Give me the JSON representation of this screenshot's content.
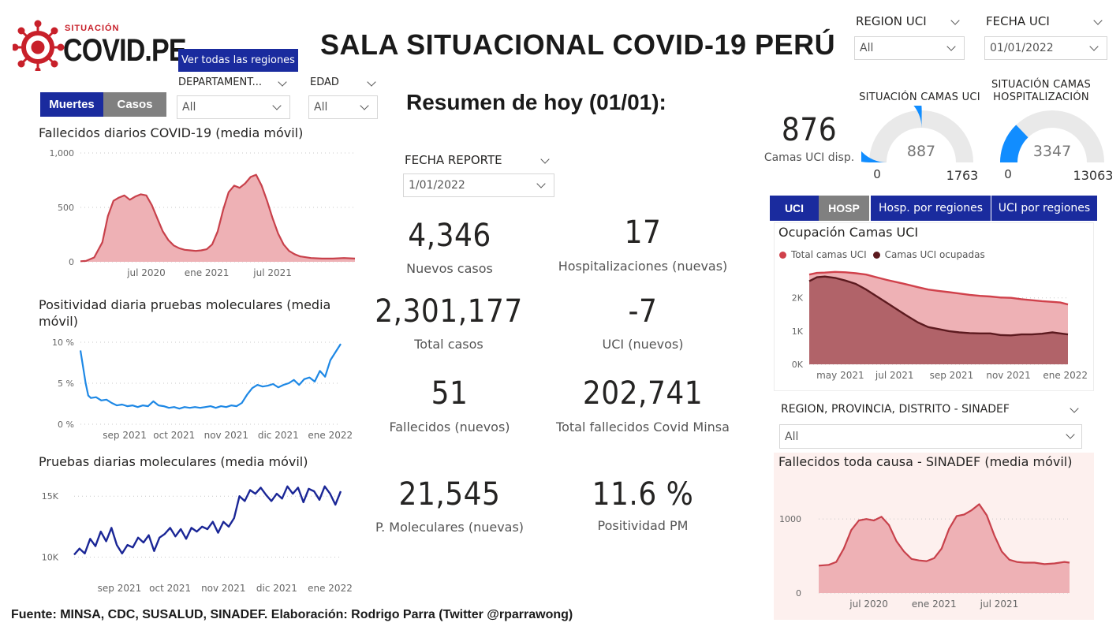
{
  "header": {
    "logo_top": "SITUACIÓN",
    "logo_main": "COVID.PE",
    "title": "SALA SITUACIONAL COVID-19 PERÚ",
    "all_regions_button": "Ver todas las regiones"
  },
  "filters": {
    "region_uci": {
      "label": "REGION UCI",
      "value": "All"
    },
    "fecha_uci": {
      "label": "FECHA UCI",
      "value": "01/01/2022"
    },
    "departamento": {
      "label": "DEPARTAMENT...",
      "value": "All"
    },
    "edad": {
      "label": "EDAD",
      "value": "All"
    },
    "fecha_reporte": {
      "label": "FECHA REPORTE",
      "value": "1/01/2022"
    },
    "sinadef_region": {
      "label": "REGION, PROVINCIA, DISTRITO - SINADEF",
      "value": "All"
    }
  },
  "toggles": {
    "muertes": "Muertes",
    "casos": "Casos",
    "uci": "UCI",
    "hosp": "HOSP",
    "hosp_regiones": "Hosp. por regiones",
    "uci_regiones": "UCI por regiones"
  },
  "summary": {
    "heading": "Resumen de hoy (01/01):",
    "kpis": [
      {
        "value": "4,346",
        "label": "Nuevos casos"
      },
      {
        "value": "17",
        "label": "Hospitalizaciones (nuevas)"
      },
      {
        "value": "2,301,177",
        "label": "Total casos"
      },
      {
        "value": "-7",
        "label": "UCI (nuevos)"
      },
      {
        "value": "51",
        "label": "Fallecidos  (nuevos)"
      },
      {
        "value": "202,741",
        "label": "Total fallecidos Covid Minsa"
      },
      {
        "value": "21,545",
        "label": "P. Moleculares (nuevas)"
      },
      {
        "value": "11.6 %",
        "label": "Positividad PM"
      }
    ]
  },
  "beds": {
    "uci_available_value": "876",
    "uci_available_label": "Camas UCI disp.",
    "uci_gauge": {
      "title": "SITUACIÓN CAMAS UCI",
      "value": 887,
      "min": 0,
      "max": 1763,
      "value_label": "887",
      "min_label": "0",
      "max_label": "1763"
    },
    "hosp_gauge": {
      "title_line1": "SITUACIÓN CAMAS",
      "title_line2": "HOSPITALIZACIÓN",
      "value": 3347,
      "min": 0,
      "max": 13063,
      "value_label": "3347",
      "min_label": "0",
      "max_label": "13063"
    }
  },
  "colors": {
    "navy": "#1a2b9e",
    "gray_toggle": "#808080",
    "death_line": "#c8414b",
    "death_fill": "#eeb1b5",
    "positivity_line": "#1e88e5",
    "tests_line": "#1a2696",
    "gauge_fill": "#118dff",
    "gauge_bg": "#e9e9e9",
    "uci_total": "#d0414b",
    "uci_occupied": "#5c1a1f",
    "sinadef_bg": "#fdf0ee"
  },
  "chart_data": [
    {
      "id": "deaths",
      "type": "area",
      "title": "Fallecidos diarios COVID-19 (media móvil)",
      "yticks": [
        "1,000",
        "500",
        "0"
      ],
      "ylim": [
        0,
        1000
      ],
      "xticks": [
        "jul 2020",
        "ene 2021",
        "jul 2021"
      ],
      "xtick_positions": [
        0.24,
        0.46,
        0.7
      ],
      "x": [
        0,
        0.02,
        0.05,
        0.08,
        0.1,
        0.12,
        0.14,
        0.16,
        0.18,
        0.2,
        0.22,
        0.24,
        0.26,
        0.28,
        0.3,
        0.32,
        0.34,
        0.36,
        0.38,
        0.4,
        0.42,
        0.44,
        0.46,
        0.48,
        0.5,
        0.52,
        0.54,
        0.56,
        0.58,
        0.6,
        0.62,
        0.64,
        0.66,
        0.68,
        0.7,
        0.72,
        0.74,
        0.76,
        0.78,
        0.8,
        0.84,
        0.88,
        0.92,
        0.96,
        1.0
      ],
      "values": [
        5,
        8,
        40,
        180,
        420,
        560,
        590,
        610,
        570,
        600,
        620,
        610,
        520,
        400,
        280,
        200,
        150,
        125,
        110,
        105,
        100,
        105,
        115,
        160,
        280,
        480,
        640,
        700,
        680,
        720,
        780,
        800,
        700,
        560,
        400,
        260,
        160,
        100,
        70,
        50,
        35,
        30,
        30,
        35,
        30
      ]
    },
    {
      "id": "positivity",
      "type": "line",
      "title": "Positividad diaria pruebas moleculares (media móvil)",
      "yticks": [
        "10 %",
        "5 %",
        "0 %"
      ],
      "ylim": [
        0,
        10
      ],
      "xticks": [
        "sep 2021",
        "oct 2021",
        "nov 2021",
        "dic 2021",
        "ene 2022"
      ],
      "xtick_positions": [
        0.17,
        0.36,
        0.56,
        0.76,
        0.96
      ],
      "x": [
        0,
        0.01,
        0.02,
        0.03,
        0.04,
        0.06,
        0.08,
        0.1,
        0.12,
        0.14,
        0.16,
        0.18,
        0.2,
        0.22,
        0.24,
        0.26,
        0.28,
        0.3,
        0.32,
        0.34,
        0.36,
        0.38,
        0.4,
        0.42,
        0.44,
        0.46,
        0.48,
        0.5,
        0.52,
        0.54,
        0.56,
        0.58,
        0.6,
        0.62,
        0.64,
        0.66,
        0.68,
        0.7,
        0.72,
        0.74,
        0.76,
        0.78,
        0.8,
        0.82,
        0.84,
        0.86,
        0.88,
        0.9,
        0.92,
        0.94,
        0.96,
        0.98,
        1.0
      ],
      "values": [
        9,
        7,
        5,
        3.5,
        3.2,
        3.3,
        2.9,
        3.0,
        2.6,
        2.3,
        2.4,
        2.2,
        2.3,
        2.1,
        2.3,
        2.2,
        2.8,
        2.3,
        2.2,
        2.0,
        2.1,
        1.9,
        2.1,
        2.0,
        2.1,
        2.0,
        2.1,
        2.2,
        2.0,
        2.2,
        2.1,
        2.3,
        2.2,
        2.6,
        3.6,
        4.4,
        4.8,
        4.6,
        4.7,
        4.9,
        4.5,
        4.8,
        5.0,
        5.4,
        4.8,
        5.5,
        5.7,
        5.2,
        6.5,
        5.8,
        7.8,
        8.8,
        9.8
      ]
    },
    {
      "id": "tests",
      "type": "line",
      "title": "Pruebas diarias moleculares (media móvil)",
      "yticks": [
        "15K",
        "10K"
      ],
      "ytick_values": [
        15000,
        10000
      ],
      "ylim": [
        9000,
        16500
      ],
      "xticks": [
        "sep 2021",
        "oct 2021",
        "nov 2021",
        "dic 2021",
        "ene 2022"
      ],
      "xtick_positions": [
        0.17,
        0.36,
        0.56,
        0.76,
        0.96
      ],
      "x": [
        0,
        0.02,
        0.04,
        0.06,
        0.08,
        0.1,
        0.12,
        0.14,
        0.16,
        0.18,
        0.2,
        0.22,
        0.24,
        0.26,
        0.28,
        0.3,
        0.32,
        0.34,
        0.36,
        0.38,
        0.4,
        0.42,
        0.44,
        0.46,
        0.48,
        0.5,
        0.52,
        0.54,
        0.56,
        0.58,
        0.6,
        0.62,
        0.64,
        0.66,
        0.68,
        0.7,
        0.72,
        0.74,
        0.76,
        0.78,
        0.8,
        0.82,
        0.84,
        0.86,
        0.88,
        0.9,
        0.92,
        0.94,
        0.96,
        0.98,
        1.0
      ],
      "values": [
        10200,
        10700,
        10300,
        11500,
        10900,
        12100,
        11300,
        12400,
        11000,
        10300,
        11000,
        10800,
        11600,
        11200,
        11800,
        10500,
        11600,
        11900,
        12400,
        11700,
        12300,
        11500,
        12400,
        12100,
        12500,
        12300,
        12900,
        12000,
        12900,
        12500,
        13200,
        15000,
        14600,
        15500,
        15200,
        15700,
        15100,
        14600,
        15200,
        14800,
        15800,
        15200,
        15700,
        14500,
        15600,
        15400,
        14700,
        15800,
        15200,
        14300,
        15400
      ]
    },
    {
      "id": "uci_occupancy",
      "type": "area",
      "title": "Ocupación Camas UCI",
      "legend": [
        "Total camas UCI",
        "Camas UCI ocupadas"
      ],
      "yticks": [
        "2K",
        "1K",
        "0K"
      ],
      "ytick_values": [
        2000,
        1000,
        0
      ],
      "ylim": [
        0,
        2800
      ],
      "xticks": [
        "may 2021",
        "jul 2021",
        "sep 2021",
        "nov 2021",
        "ene 2022"
      ],
      "xtick_positions": [
        0.12,
        0.33,
        0.55,
        0.77,
        0.99
      ],
      "x": [
        0,
        0.03,
        0.06,
        0.1,
        0.14,
        0.18,
        0.22,
        0.26,
        0.3,
        0.34,
        0.38,
        0.42,
        0.46,
        0.5,
        0.54,
        0.58,
        0.62,
        0.66,
        0.7,
        0.74,
        0.78,
        0.82,
        0.86,
        0.9,
        0.94,
        0.97,
        1.0
      ],
      "series": [
        {
          "name": "Total camas UCI",
          "values": [
            2700,
            2750,
            2760,
            2780,
            2770,
            2740,
            2700,
            2620,
            2540,
            2470,
            2400,
            2320,
            2250,
            2210,
            2170,
            2130,
            2090,
            2060,
            2040,
            2010,
            2000,
            1960,
            1930,
            1900,
            1880,
            1860,
            1800
          ]
        },
        {
          "name": "Camas UCI ocupadas",
          "values": [
            2500,
            2620,
            2640,
            2600,
            2520,
            2420,
            2250,
            2050,
            1850,
            1650,
            1450,
            1260,
            1120,
            1060,
            1000,
            960,
            940,
            930,
            930,
            880,
            870,
            900,
            900,
            920,
            960,
            930,
            900
          ]
        }
      ]
    },
    {
      "id": "sinadef",
      "type": "area",
      "title": "Fallecidos toda causa - SINADEF (media móvil)",
      "yticks": [
        "1000",
        "0"
      ],
      "ytick_values": [
        1000,
        0
      ],
      "ylim": [
        0,
        1300
      ],
      "xticks": [
        "jul 2020",
        "ene 2021",
        "jul 2021"
      ],
      "xtick_positions": [
        0.2,
        0.46,
        0.72
      ],
      "x": [
        0,
        0.04,
        0.07,
        0.1,
        0.13,
        0.16,
        0.19,
        0.22,
        0.25,
        0.28,
        0.31,
        0.34,
        0.37,
        0.4,
        0.43,
        0.46,
        0.49,
        0.52,
        0.55,
        0.58,
        0.61,
        0.64,
        0.67,
        0.7,
        0.73,
        0.76,
        0.79,
        0.82,
        0.86,
        0.9,
        0.94,
        0.98,
        1.0
      ],
      "values": [
        370,
        380,
        420,
        600,
        850,
        980,
        1000,
        980,
        1030,
        920,
        700,
        560,
        460,
        440,
        430,
        470,
        600,
        870,
        1040,
        1060,
        1120,
        1200,
        1050,
        780,
        560,
        450,
        420,
        410,
        410,
        390,
        400,
        420,
        410
      ]
    }
  ],
  "footer": "Fuente: MINSA, CDC, SUSALUD, SINADEF. Elaboración: Rodrigo Parra (Twitter @rparrawong)"
}
